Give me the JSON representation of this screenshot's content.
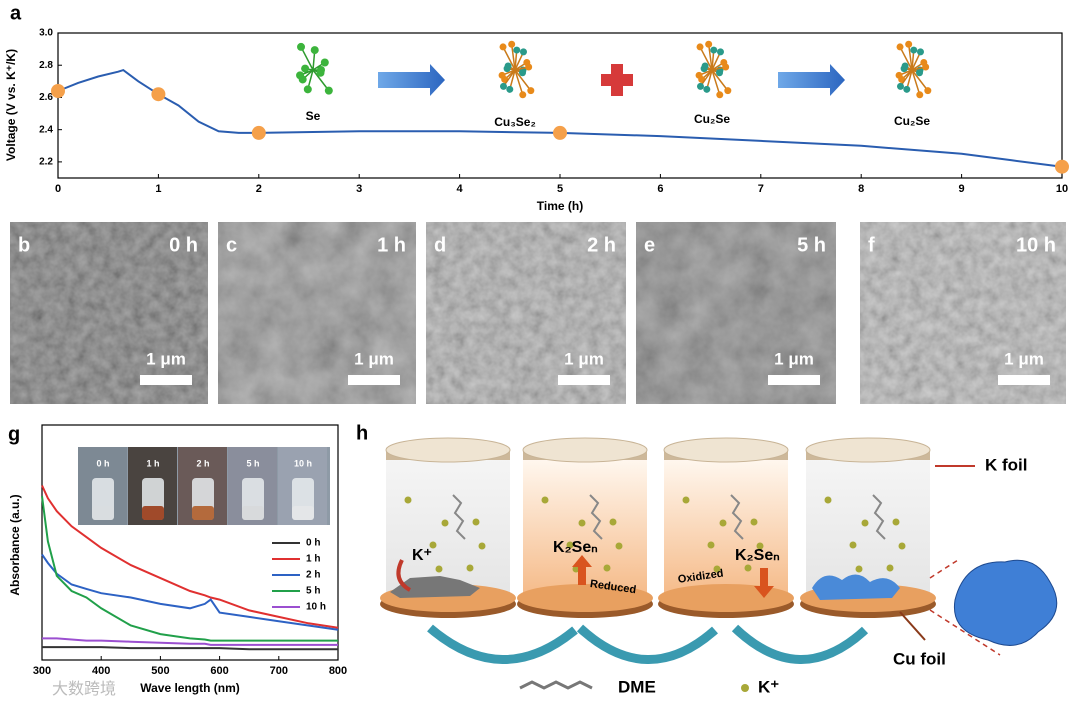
{
  "chart_data": [
    {
      "type": "line",
      "label": "a",
      "x_label": "Time (h)",
      "y_label": "Voltage (V vs. K⁺/K)",
      "x": [
        0,
        0.2,
        0.4,
        0.6,
        0.65,
        0.8,
        1.0,
        1.2,
        1.4,
        1.6,
        1.8,
        2,
        3,
        4,
        5,
        6,
        7,
        8,
        9,
        9.5,
        10
      ],
      "values": [
        2.64,
        2.69,
        2.73,
        2.76,
        2.77,
        2.7,
        2.62,
        2.55,
        2.45,
        2.39,
        2.38,
        2.38,
        2.39,
        2.39,
        2.38,
        2.36,
        2.33,
        2.3,
        2.25,
        2.21,
        2.17
      ],
      "color": "#2a5db0",
      "markers": {
        "x": [
          0,
          1,
          2,
          5,
          10
        ],
        "values": [
          2.64,
          2.62,
          2.38,
          2.38,
          2.17
        ],
        "color": "#f5a04a"
      },
      "xlim": [
        0,
        10
      ],
      "xticks": [
        0,
        1,
        2,
        3,
        4,
        5,
        6,
        7,
        8,
        9,
        10
      ],
      "ylim": [
        2.1,
        3.0
      ],
      "yticks": [
        2.2,
        2.4,
        2.6,
        2.8,
        {
          "value": 3,
          "label": "3.0"
        }
      ],
      "annotations": [
        "Se",
        "Cu₃Se₂",
        "Cu₂Se",
        "Cu₂Se"
      ]
    },
    {
      "type": "line",
      "label": "g",
      "x_label": "Wave length (nm)",
      "y_label": "Absorbance (a.u.)",
      "x": [
        300,
        310,
        325,
        350,
        375,
        400,
        450,
        500,
        550,
        575,
        585,
        600,
        650,
        700,
        750,
        800
      ],
      "series": [
        {
          "name": "0 h",
          "color": "#333333",
          "values": [
            0.04,
            0.04,
            0.04,
            0.04,
            0.04,
            0.04,
            0.035,
            0.035,
            0.035,
            0.035,
            0.035,
            0.035,
            0.03,
            0.03,
            0.03,
            0.03
          ]
        },
        {
          "name": "1 h",
          "color": "#e03030",
          "values": [
            0.79,
            0.73,
            0.67,
            0.6,
            0.55,
            0.5,
            0.42,
            0.36,
            0.3,
            0.28,
            0.27,
            0.26,
            0.21,
            0.18,
            0.15,
            0.13
          ]
        },
        {
          "name": "2 h",
          "color": "#2d62c4",
          "values": [
            0.47,
            0.43,
            0.38,
            0.33,
            0.31,
            0.29,
            0.27,
            0.24,
            0.22,
            0.24,
            0.26,
            0.2,
            0.18,
            0.16,
            0.14,
            0.12
          ]
        },
        {
          "name": "5 h",
          "color": "#21a04a",
          "values": [
            0.74,
            0.53,
            0.37,
            0.3,
            0.27,
            0.22,
            0.14,
            0.1,
            0.08,
            0.075,
            0.07,
            0.07,
            0.07,
            0.07,
            0.07,
            0.07
          ]
        },
        {
          "name": "10 h",
          "color": "#9b4fd0",
          "values": [
            0.08,
            0.08,
            0.08,
            0.075,
            0.07,
            0.07,
            0.065,
            0.06,
            0.055,
            0.055,
            0.05,
            0.05,
            0.05,
            0.05,
            0.05,
            0.05
          ]
        }
      ],
      "xlim": [
        300,
        800
      ],
      "xticks": [
        300,
        400,
        500,
        600,
        700,
        800
      ],
      "ylim": [
        -0.02,
        1.07
      ],
      "legend": "right",
      "inset_labels": [
        "0 h",
        "1 h",
        "2 h",
        "5 h",
        "10 h"
      ]
    }
  ],
  "sem": [
    {
      "label": "b",
      "time": "0 h",
      "scale": "1 μm"
    },
    {
      "label": "c",
      "time": "1 h",
      "scale": "1 μm"
    },
    {
      "label": "d",
      "time": "2 h",
      "scale": "1 μm"
    },
    {
      "label": "e",
      "time": "5 h",
      "scale": "1 μm"
    },
    {
      "label": "f",
      "time": "10 h",
      "scale": "1 μm"
    }
  ],
  "diagram": {
    "label": "h",
    "k_foil": "K foil",
    "cu_foil": "Cu foil",
    "k_ion": "K⁺",
    "product_1": "K₂Seₙ",
    "reduced": "Reduced",
    "oxidized": "Oxidized",
    "product_2": "K₂Seₙ",
    "dme": "DME",
    "legend_k": "K⁺"
  },
  "watermark": "大数跨境"
}
